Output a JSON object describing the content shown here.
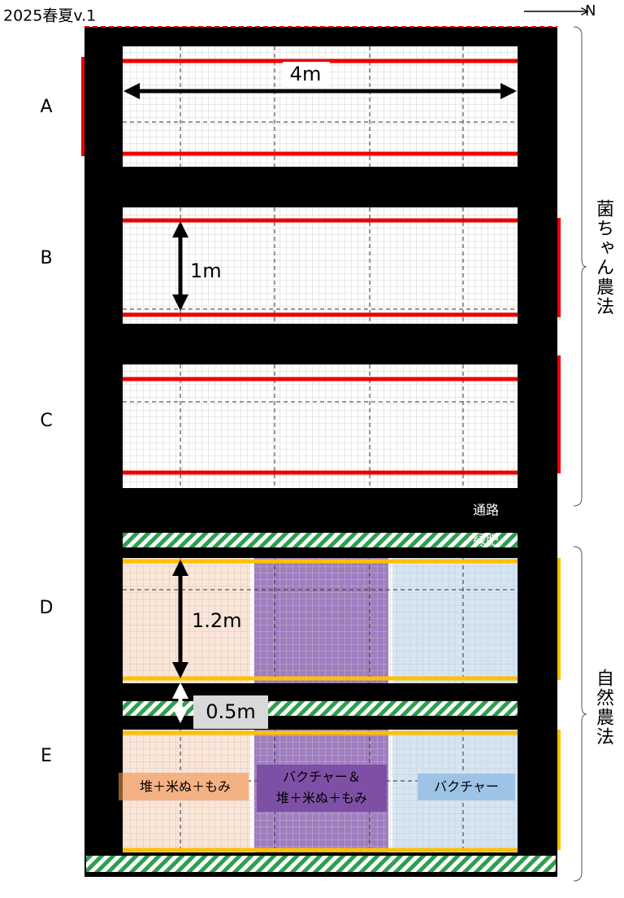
{
  "header": {
    "title": "2025春夏v.1",
    "north": "N"
  },
  "beds": [
    {
      "label": "A"
    },
    {
      "label": "B"
    },
    {
      "label": "C"
    },
    {
      "label": "D"
    },
    {
      "label": "E"
    }
  ],
  "dimensions": {
    "width": "4m",
    "bed_width": "1m",
    "bed_width_natural": "1.2m",
    "path_width": "0.5m"
  },
  "path_label": "通路",
  "green_manure_label": "緑肥",
  "groups": [
    "菌ちゃん農法",
    "自然農法"
  ],
  "treatments": [
    {
      "lines": [
        "堆＋米ぬ＋もみ"
      ]
    },
    {
      "lines": [
        "バクチャー＆",
        "堆＋米ぬ＋もみ"
      ]
    },
    {
      "lines": [
        "バクチャー"
      ]
    }
  ]
}
